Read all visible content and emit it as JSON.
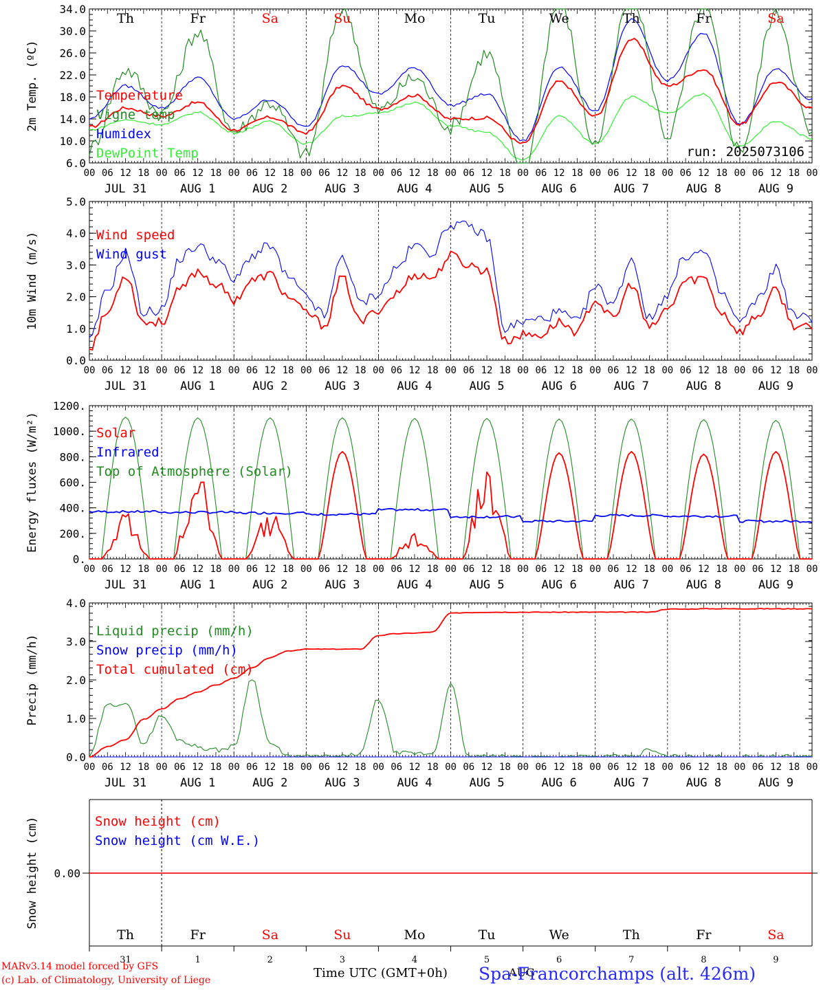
{
  "page": {
    "run_label": "run: 2025073106",
    "day_names": [
      "Th",
      "Fr",
      "Sa",
      "Su",
      "Mo",
      "Tu",
      "We",
      "Th",
      "Fr",
      "Sa"
    ],
    "weekend_days": [
      2,
      3,
      9
    ],
    "date_labels": [
      "JUL 31",
      "AUG  1",
      "AUG  2",
      "AUG  3",
      "AUG  4",
      "AUG  5",
      "AUG  6",
      "AUG  7",
      "AUG  8",
      "AUG  9"
    ],
    "hour_labels": [
      "00",
      "06",
      "12",
      "18"
    ],
    "end_hour_label": "00",
    "bottom_day_numbers": [
      "31",
      "1",
      "2",
      "3",
      "4",
      "5",
      "6",
      "7",
      "8",
      "9"
    ],
    "bottom_month": "AUG",
    "xlabel": "Time UTC (GMT+0h)",
    "station": "Spa-Francorchamps (alt. 426m)",
    "credit_model": "MARv3.14 model forced by GFS",
    "credit_lab": "(c) Lab. of Climatology, University of Liege",
    "colors": {
      "red": "#ff0000",
      "dark_green": "#228b22",
      "blue": "#0000ff",
      "light_green": "#33ee33",
      "axis": "#000000"
    }
  },
  "chart_data": [
    {
      "type": "line",
      "ylabel": "2m Temp. (ºC)",
      "ylim": [
        6,
        34
      ],
      "yticks": [
        "6.0",
        "10.0",
        "14.0",
        "18.0",
        "22.0",
        "26.0",
        "30.0",
        "34.0"
      ],
      "x": [
        "2025-07-31T00",
        "2025-07-31T12",
        "2025-08-01T00",
        "2025-08-01T12",
        "2025-08-02T00",
        "2025-08-02T12",
        "2025-08-03T00",
        "2025-08-03T12",
        "2025-08-04T00",
        "2025-08-04T12",
        "2025-08-05T00",
        "2025-08-05T12",
        "2025-08-06T00",
        "2025-08-06T12",
        "2025-08-07T00",
        "2025-08-07T12",
        "2025-08-08T00",
        "2025-08-08T12",
        "2025-08-09T00",
        "2025-08-09T12",
        "2025-08-10T00"
      ],
      "series": [
        {
          "name": "Temperature",
          "color": "#ff0000",
          "values": [
            12.5,
            16.0,
            14.5,
            17.0,
            12.0,
            14.3,
            11.5,
            20.0,
            15.8,
            18.3,
            14.0,
            14.2,
            9.5,
            20.8,
            14.5,
            28.5,
            20.0,
            23.0,
            13.0,
            20.7,
            16.0
          ]
        },
        {
          "name": "Vigne temp",
          "color": "#228b22",
          "values": [
            8.5,
            23.0,
            15.0,
            29.8,
            11.8,
            17.0,
            7.5,
            34.0,
            15.5,
            21.5,
            12.5,
            26.0,
            4.5,
            35.5,
            9.5,
            37.0,
            11.0,
            34.5,
            8.5,
            33.5,
            11.0
          ]
        },
        {
          "name": "Humidex",
          "color": "#0000ff",
          "values": [
            14.0,
            20.0,
            16.0,
            21.5,
            14.0,
            17.5,
            12.5,
            23.8,
            18.5,
            23.3,
            16.5,
            18.5,
            10.0,
            23.5,
            15.5,
            32.0,
            21.0,
            29.5,
            13.0,
            23.0,
            17.5
          ]
        },
        {
          "name": "DewPoint Temp",
          "color": "#33ee33",
          "values": [
            12.0,
            13.8,
            13.0,
            15.2,
            11.5,
            13.5,
            9.5,
            14.5,
            15.0,
            17.0,
            12.8,
            11.5,
            6.5,
            14.5,
            9.5,
            18.0,
            15.0,
            18.5,
            9.0,
            13.5,
            10.5
          ]
        }
      ]
    },
    {
      "type": "line",
      "ylabel": "10m Wind (m/s)",
      "ylim": [
        0,
        5
      ],
      "yticks": [
        "0.0",
        "1.0",
        "2.0",
        "3.0",
        "4.0",
        "5.0"
      ],
      "x": [
        "2025-07-31T00",
        "2025-07-31T06",
        "2025-07-31T12",
        "2025-07-31T18",
        "2025-08-01T00",
        "2025-08-01T06",
        "2025-08-01T12",
        "2025-08-01T18",
        "2025-08-02T00",
        "2025-08-02T06",
        "2025-08-02T12",
        "2025-08-02T18",
        "2025-08-03T00",
        "2025-08-03T06",
        "2025-08-03T12",
        "2025-08-03T18",
        "2025-08-04T00",
        "2025-08-04T06",
        "2025-08-04T12",
        "2025-08-04T18",
        "2025-08-05T00",
        "2025-08-05T06",
        "2025-08-05T12",
        "2025-08-05T18",
        "2025-08-06T00",
        "2025-08-06T06",
        "2025-08-06T12",
        "2025-08-06T18",
        "2025-08-07T00",
        "2025-08-07T06",
        "2025-08-07T12",
        "2025-08-07T18",
        "2025-08-08T00",
        "2025-08-08T06",
        "2025-08-08T12",
        "2025-08-08T18",
        "2025-08-09T00",
        "2025-08-09T06",
        "2025-08-09T12",
        "2025-08-09T18",
        "2025-08-10T00"
      ],
      "series": [
        {
          "name": "Wind speed",
          "color": "#ff0000",
          "values": [
            0.4,
            1.5,
            2.7,
            1.2,
            1.2,
            2.2,
            2.8,
            2.4,
            1.9,
            2.5,
            2.7,
            2.0,
            1.5,
            1.1,
            2.6,
            1.2,
            1.6,
            2.1,
            2.7,
            2.6,
            3.3,
            3.0,
            2.8,
            0.6,
            0.8,
            0.8,
            1.2,
            0.9,
            1.9,
            1.3,
            2.4,
            1.0,
            1.6,
            2.5,
            2.6,
            1.5,
            0.9,
            1.4,
            2.2,
            1.1,
            1.0
          ]
        },
        {
          "name": "Wind gust",
          "color": "#0000ff",
          "values": [
            0.6,
            2.2,
            3.4,
            1.5,
            1.6,
            3.2,
            3.6,
            3.2,
            2.5,
            3.3,
            3.6,
            2.6,
            2.0,
            1.4,
            3.3,
            1.8,
            2.1,
            2.9,
            3.6,
            3.4,
            4.3,
            4.2,
            3.9,
            1.0,
            1.2,
            1.3,
            1.5,
            1.2,
            2.3,
            1.8,
            3.2,
            1.3,
            2.1,
            3.3,
            3.4,
            2.1,
            1.2,
            1.9,
            2.9,
            1.4,
            1.3
          ]
        }
      ]
    },
    {
      "type": "line",
      "ylabel": "Energy fluxes (W/m²)",
      "ylim": [
        0,
        1200
      ],
      "yticks": [
        "0.",
        "200.",
        "400.",
        "600.",
        "800.",
        "1000.",
        "1200."
      ],
      "x_days": [
        "2025-07-31",
        "2025-08-01",
        "2025-08-02",
        "2025-08-03",
        "2025-08-04",
        "2025-08-05",
        "2025-08-06",
        "2025-08-07",
        "2025-08-08",
        "2025-08-09"
      ],
      "series": [
        {
          "name": "Solar",
          "color": "#ff0000",
          "daily_peak": [
            380,
            730,
            400,
            840,
            210,
            790,
            830,
            840,
            820,
            840
          ]
        },
        {
          "name": "Infrared",
          "color": "#0000ff",
          "daily_mean": [
            370,
            365,
            360,
            350,
            385,
            330,
            295,
            340,
            335,
            295
          ]
        },
        {
          "name": "Top of Atmosphere (Solar)",
          "color": "#228b22",
          "daily_peak": [
            1110,
            1105,
            1105,
            1105,
            1100,
            1100,
            1095,
            1095,
            1090,
            1085
          ]
        }
      ]
    },
    {
      "type": "line",
      "ylabel": "Precip (mm/h)",
      "ylim": [
        0,
        4.5
      ],
      "yticks": [
        "0.0",
        "1.0",
        "2.0",
        "3.0",
        "4.0"
      ],
      "x": [
        "2025-07-31T00",
        "2025-07-31T06",
        "2025-07-31T12",
        "2025-07-31T18",
        "2025-08-01T00",
        "2025-08-01T06",
        "2025-08-01T12",
        "2025-08-01T18",
        "2025-08-02T00",
        "2025-08-02T06",
        "2025-08-02T12",
        "2025-08-02T18",
        "2025-08-03T00",
        "2025-08-03T06",
        "2025-08-03T12",
        "2025-08-03T18",
        "2025-08-04T00",
        "2025-08-04T06",
        "2025-08-04T12",
        "2025-08-04T18",
        "2025-08-05T00",
        "2025-08-05T06",
        "2025-08-05T12",
        "2025-08-05T18",
        "2025-08-06T00",
        "2025-08-06T06",
        "2025-08-06T12",
        "2025-08-06T18",
        "2025-08-07T00",
        "2025-08-07T06",
        "2025-08-07T12",
        "2025-08-07T18",
        "2025-08-08T00",
        "2025-08-08T06",
        "2025-08-08T12",
        "2025-08-08T18",
        "2025-08-09T00",
        "2025-08-09T06",
        "2025-08-09T12",
        "2025-08-09T18",
        "2025-08-10T00"
      ],
      "series": [
        {
          "name": "Liquid precip (mm/h)",
          "color": "#228b22",
          "values": [
            0.0,
            1.5,
            1.6,
            0.4,
            1.2,
            0.5,
            0.3,
            0.2,
            0.3,
            2.3,
            0.4,
            0.0,
            0.0,
            0.0,
            0.0,
            0.1,
            1.7,
            0.1,
            0.1,
            0.1,
            2.1,
            0.0,
            0.0,
            0.0,
            0.0,
            0.0,
            0.0,
            0.0,
            0.0,
            0.0,
            0.0,
            0.2,
            0.0,
            0.0,
            0.0,
            0.0,
            0.0,
            0.0,
            0.0,
            0.0,
            0.0
          ]
        },
        {
          "name": "Snow precip (mm/h)",
          "color": "#0000ff",
          "values": [
            0,
            0,
            0,
            0,
            0,
            0,
            0,
            0,
            0,
            0,
            0,
            0,
            0,
            0,
            0,
            0,
            0,
            0,
            0,
            0,
            0,
            0,
            0,
            0,
            0,
            0,
            0,
            0,
            0,
            0,
            0,
            0,
            0,
            0,
            0,
            0,
            0,
            0,
            0,
            0,
            0
          ]
        },
        {
          "name": "Total cumulated (cm)",
          "color": "#ff0000",
          "values": [
            0.0,
            0.3,
            0.5,
            1.1,
            1.4,
            1.7,
            1.9,
            2.1,
            2.3,
            2.6,
            2.9,
            3.1,
            3.15,
            3.15,
            3.15,
            3.15,
            3.55,
            3.6,
            3.62,
            3.65,
            4.2,
            4.22,
            4.23,
            4.23,
            4.23,
            4.23,
            4.23,
            4.23,
            4.23,
            4.23,
            4.23,
            4.23,
            4.32,
            4.32,
            4.33,
            4.33,
            4.33,
            4.33,
            4.33,
            4.33,
            4.33
          ]
        }
      ]
    },
    {
      "type": "line",
      "ylabel": "Snow height (cm)",
      "yticks": [
        "0.00"
      ],
      "series": [
        {
          "name": "Snow height (cm)",
          "color": "#ff0000",
          "values": [
            0,
            0
          ]
        },
        {
          "name": "Snow height (cm W.E.)",
          "color": "#0000ff",
          "values": [
            0,
            0
          ]
        }
      ]
    }
  ]
}
